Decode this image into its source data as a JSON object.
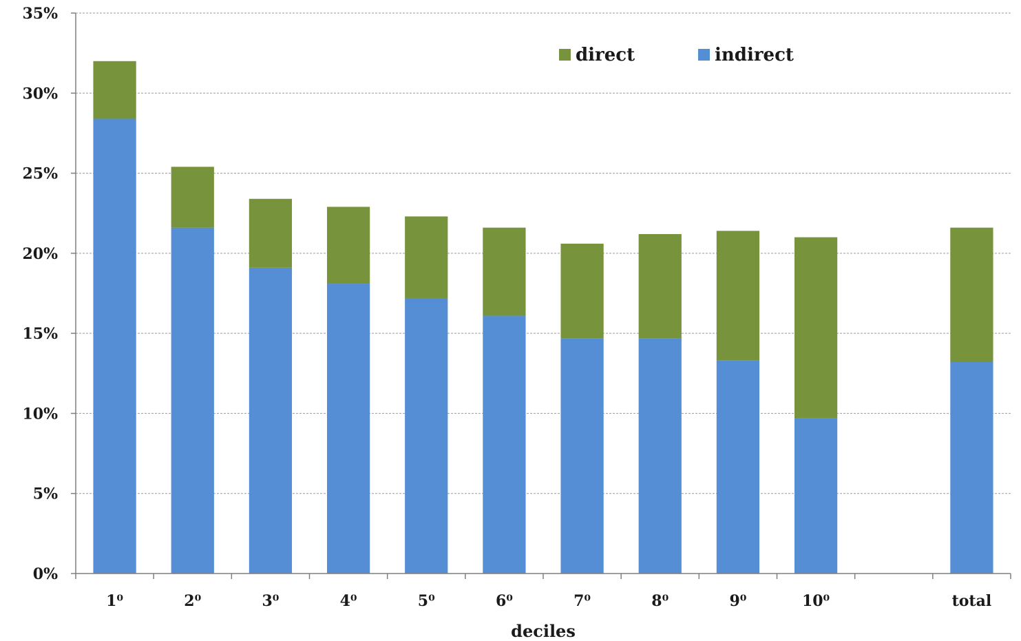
{
  "chart_data": {
    "type": "bar",
    "stacked": true,
    "categories": [
      "1⁰",
      "2⁰",
      "3⁰",
      "4⁰",
      "5⁰",
      "6⁰",
      "7⁰",
      "8⁰",
      "9⁰",
      "10⁰",
      "",
      "total"
    ],
    "series": [
      {
        "name": "indirect",
        "color": "#558ed5",
        "values": [
          28.4,
          21.6,
          19.1,
          18.1,
          17.2,
          16.1,
          14.7,
          14.7,
          13.3,
          9.7,
          null,
          13.2
        ]
      },
      {
        "name": "direct",
        "color": "#77933c",
        "values": [
          3.6,
          3.8,
          4.3,
          4.8,
          5.1,
          5.5,
          5.9,
          6.5,
          8.1,
          11.3,
          null,
          8.4
        ]
      }
    ],
    "legend_order": [
      "direct",
      "indirect"
    ],
    "legend_position": "top-center",
    "title": "",
    "xlabel": "deciles",
    "ylabel": "",
    "ylim": [
      0,
      35
    ],
    "yticks": [
      0,
      5,
      10,
      15,
      20,
      25,
      30,
      35
    ],
    "ytick_format": "%",
    "grid": true
  }
}
